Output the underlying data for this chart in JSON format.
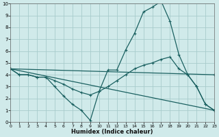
{
  "xlabel": "Humidex (Indice chaleur)",
  "bg_color": "#d0eaea",
  "grid_color": "#a8cccc",
  "line_color": "#1a6060",
  "xlim": [
    0,
    23
  ],
  "ylim": [
    0,
    10
  ],
  "xticks": [
    0,
    1,
    2,
    3,
    4,
    5,
    6,
    7,
    8,
    9,
    10,
    11,
    12,
    13,
    14,
    15,
    16,
    17,
    18,
    19,
    20,
    21,
    22,
    23
  ],
  "yticks": [
    0,
    1,
    2,
    3,
    4,
    5,
    6,
    7,
    8,
    9,
    10
  ],
  "line1_x": [
    0,
    1,
    2,
    3,
    4,
    5,
    6,
    7,
    8,
    9,
    10,
    11,
    12,
    13,
    14,
    15,
    16,
    17,
    18,
    19,
    20,
    21,
    22,
    23
  ],
  "line1_y": [
    4.5,
    4.0,
    4.0,
    3.8,
    3.8,
    3.0,
    2.2,
    1.5,
    1.0,
    0.15,
    2.6,
    4.4,
    4.4,
    6.1,
    7.5,
    9.3,
    9.7,
    10.2,
    8.5,
    5.7,
    4.0,
    3.0,
    1.5,
    1.0
  ],
  "line2_x": [
    0,
    1,
    2,
    3,
    4,
    5,
    6,
    7,
    8,
    9,
    10,
    11,
    12,
    13,
    14,
    15,
    16,
    17,
    18,
    19,
    20,
    21,
    22,
    23
  ],
  "line2_y": [
    4.5,
    4.0,
    4.0,
    3.8,
    3.8,
    3.5,
    3.2,
    2.8,
    2.5,
    2.3,
    2.6,
    3.0,
    3.5,
    4.0,
    4.5,
    4.8,
    5.0,
    5.3,
    5.5,
    4.5,
    4.0,
    3.0,
    1.5,
    1.0
  ],
  "line3_x": [
    0,
    23
  ],
  "line3_y": [
    4.5,
    4.0
  ],
  "line4_x": [
    0,
    23
  ],
  "line4_y": [
    4.5,
    1.0
  ]
}
